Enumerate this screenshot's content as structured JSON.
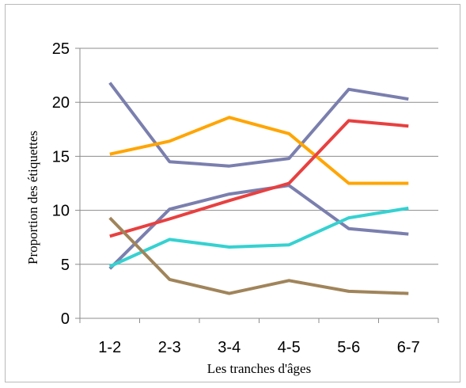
{
  "chart_data": {
    "type": "line",
    "xlabel": "Les tranches d'âges",
    "ylabel": "Proportion des étiquettes",
    "categories": [
      "1-2",
      "2-3",
      "3-4",
      "4-5",
      "5-6",
      "6-7"
    ],
    "ylim": [
      0,
      25
    ],
    "yticks": [
      0,
      5,
      10,
      15,
      20,
      25
    ],
    "grid": "horizontal",
    "legend": "none",
    "series": [
      {
        "color": "#7b7fae",
        "values": [
          21.8,
          14.5,
          14.1,
          14.8,
          21.2,
          20.3
        ]
      },
      {
        "color": "#7b7fae",
        "values": [
          4.6,
          10.1,
          11.5,
          12.3,
          8.3,
          7.8
        ]
      },
      {
        "color": "#ffa500",
        "values": [
          15.2,
          16.4,
          18.6,
          17.1,
          12.5,
          12.5
        ]
      },
      {
        "color": "#e84040",
        "values": [
          7.6,
          9.2,
          10.9,
          12.5,
          18.3,
          17.8
        ]
      },
      {
        "color": "#36d1d1",
        "values": [
          4.8,
          7.3,
          6.6,
          6.8,
          9.3,
          10.2
        ]
      },
      {
        "color": "#a0845a",
        "values": [
          9.3,
          3.6,
          2.3,
          3.5,
          2.5,
          2.3
        ]
      }
    ]
  }
}
